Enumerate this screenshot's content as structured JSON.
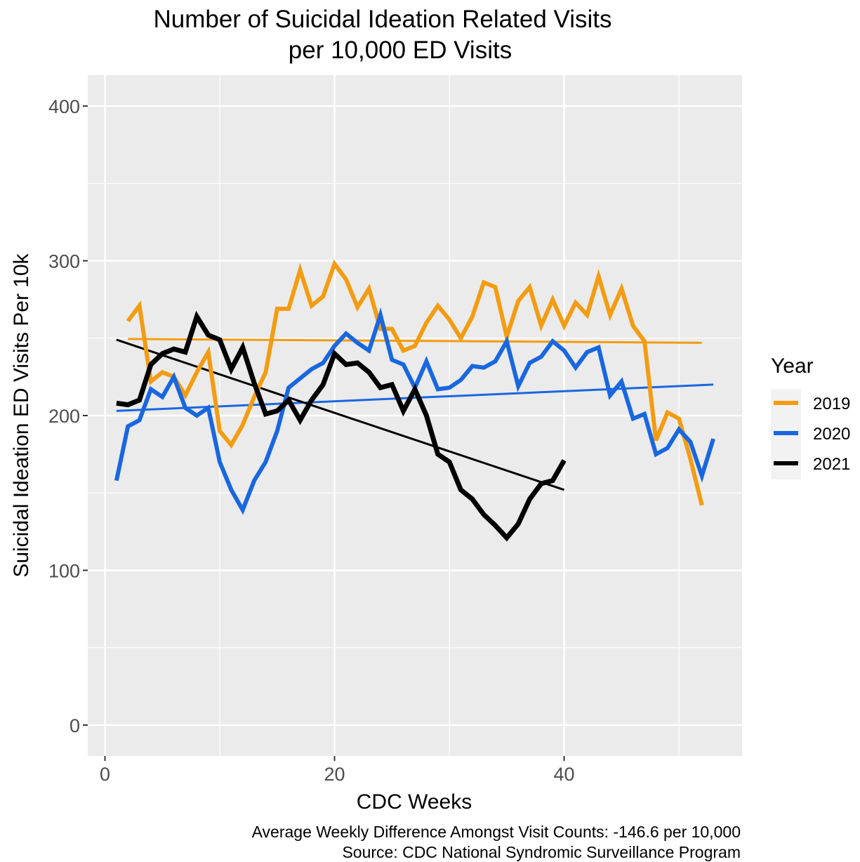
{
  "chart_data": {
    "type": "line",
    "title_lines": [
      "Number of Suicidal Ideation Related Visits",
      "per 10,000 ED Visits"
    ],
    "xlabel": "CDC Weeks",
    "ylabel": "Suicidal Ideation ED Visits Per 10k",
    "xlim": [
      -1.5,
      55.5
    ],
    "ylim": [
      -20,
      420
    ],
    "xticks": [
      0,
      20,
      40
    ],
    "yticks": [
      0,
      100,
      200,
      300,
      400
    ],
    "x_minor_grid": [
      10,
      30,
      50
    ],
    "y_minor_grid": [
      50,
      150,
      250,
      350
    ],
    "grid": true,
    "legend": {
      "title": "Year",
      "position": "right"
    },
    "series": [
      {
        "name": "2019",
        "color": "#F39C12",
        "x": [
          2,
          3,
          4,
          5,
          6,
          7,
          8,
          9,
          10,
          11,
          12,
          13,
          14,
          15,
          16,
          17,
          18,
          19,
          20,
          21,
          22,
          23,
          24,
          25,
          26,
          27,
          28,
          29,
          30,
          31,
          32,
          33,
          34,
          35,
          36,
          37,
          38,
          39,
          40,
          41,
          42,
          43,
          44,
          45,
          46,
          47,
          48,
          49,
          50,
          51,
          52
        ],
        "values": [
          261,
          271,
          222,
          228,
          225,
          213,
          228,
          241,
          190,
          181,
          194,
          212,
          228,
          269,
          269,
          294,
          271,
          277,
          298,
          288,
          270,
          282,
          256,
          256,
          242,
          245,
          260,
          271,
          262,
          250,
          264,
          286,
          283,
          251,
          274,
          283,
          258,
          275,
          258,
          273,
          265,
          290,
          265,
          282,
          258,
          248,
          184,
          202,
          198,
          172,
          142
        ],
        "trend": [
          [
            2,
            249.5
          ],
          [
            52,
            247
          ]
        ]
      },
      {
        "name": "2020",
        "color": "#1967E0",
        "x": [
          1,
          2,
          3,
          4,
          5,
          6,
          7,
          8,
          9,
          10,
          11,
          12,
          13,
          14,
          15,
          16,
          17,
          18,
          19,
          20,
          21,
          22,
          23,
          24,
          25,
          26,
          27,
          28,
          29,
          30,
          31,
          32,
          33,
          34,
          35,
          36,
          37,
          38,
          39,
          40,
          41,
          42,
          43,
          44,
          45,
          46,
          47,
          48,
          49,
          50,
          51,
          52,
          53
        ],
        "values": [
          158,
          193,
          197,
          217,
          212,
          225,
          205,
          200,
          205,
          170,
          152,
          139,
          158,
          170,
          190,
          218,
          224,
          230,
          234,
          245,
          253,
          247,
          242,
          265,
          236,
          233,
          218,
          235,
          217,
          218,
          223,
          232,
          231,
          235,
          248,
          219,
          234,
          238,
          248,
          242,
          231,
          241,
          244,
          213,
          222,
          198,
          201,
          175,
          179,
          191,
          183,
          161,
          185
        ],
        "trend": [
          [
            1,
            203
          ],
          [
            53,
            220
          ]
        ]
      },
      {
        "name": "2021",
        "color": "#000000",
        "x": [
          1,
          2,
          3,
          4,
          5,
          6,
          7,
          8,
          9,
          10,
          11,
          12,
          13,
          14,
          15,
          16,
          17,
          18,
          19,
          20,
          21,
          22,
          23,
          24,
          25,
          26,
          27,
          28,
          29,
          30,
          31,
          32,
          33,
          34,
          35,
          36,
          37,
          38,
          39,
          40
        ],
        "values": [
          208,
          207,
          210,
          233,
          240,
          243,
          241,
          264,
          252,
          249,
          230,
          244,
          221,
          201,
          203,
          210,
          197,
          210,
          220,
          240,
          233,
          234,
          228,
          218,
          220,
          203,
          217,
          200,
          175,
          170,
          152,
          146,
          136,
          129,
          121,
          130,
          146,
          156,
          158,
          171
        ],
        "trend": [
          [
            1,
            249
          ],
          [
            40,
            152
          ]
        ]
      }
    ],
    "caption_lines": [
      "Average Weekly Difference Amongst Visit Counts: -146.6 per 10,000",
      "Source: CDC National Syndromic Surveillance Program"
    ]
  }
}
